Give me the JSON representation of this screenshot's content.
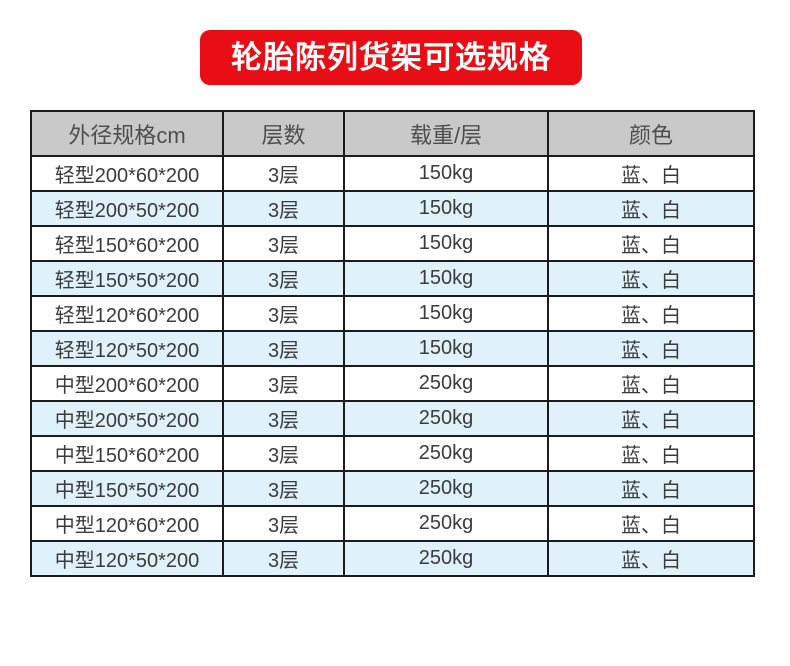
{
  "banner": {
    "title": "轮胎陈列货架可选规格",
    "background_color": "#e90d15",
    "text_color": "#ffffff"
  },
  "table": {
    "columns": [
      "外径规格cm",
      "层数",
      "载重/层",
      "颜色"
    ],
    "header_background": "#c9c9c9",
    "header_text_color": "#4e4e4e",
    "stripe_color": "#dff2f9",
    "border_color": "#1b1b1b",
    "rows": [
      {
        "spec": "轻型200*60*200",
        "layers": "3层",
        "load": "150kg",
        "colors": "蓝、白"
      },
      {
        "spec": "轻型200*50*200",
        "layers": "3层",
        "load": "150kg",
        "colors": "蓝、白"
      },
      {
        "spec": "轻型150*60*200",
        "layers": "3层",
        "load": "150kg",
        "colors": "蓝、白"
      },
      {
        "spec": "轻型150*50*200",
        "layers": "3层",
        "load": "150kg",
        "colors": "蓝、白"
      },
      {
        "spec": "轻型120*60*200",
        "layers": "3层",
        "load": "150kg",
        "colors": "蓝、白"
      },
      {
        "spec": "轻型120*50*200",
        "layers": "3层",
        "load": "150kg",
        "colors": "蓝、白"
      },
      {
        "spec": "中型200*60*200",
        "layers": "3层",
        "load": "250kg",
        "colors": "蓝、白"
      },
      {
        "spec": "中型200*50*200",
        "layers": "3层",
        "load": "250kg",
        "colors": "蓝、白"
      },
      {
        "spec": "中型150*60*200",
        "layers": "3层",
        "load": "250kg",
        "colors": "蓝、白"
      },
      {
        "spec": "中型150*50*200",
        "layers": "3层",
        "load": "250kg",
        "colors": "蓝、白"
      },
      {
        "spec": "中型120*60*200",
        "layers": "3层",
        "load": "250kg",
        "colors": "蓝、白"
      },
      {
        "spec": "中型120*50*200",
        "layers": "3层",
        "load": "250kg",
        "colors": "蓝、白"
      }
    ]
  }
}
